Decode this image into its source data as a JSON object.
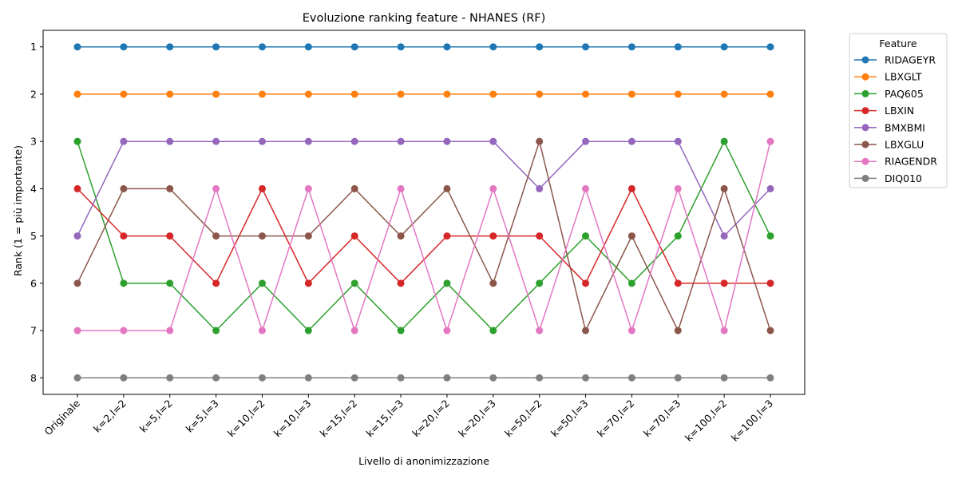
{
  "chart_data": {
    "type": "line",
    "title": "Evoluzione ranking feature - NHANES (RF)",
    "xlabel": "Livello di anonimizzazione",
    "ylabel": "Rank (1 = più importante)",
    "categories": [
      "Originale",
      "k=2,l=2",
      "k=5,l=2",
      "k=5,l=3",
      "k=10,l=2",
      "k=10,l=3",
      "k=15,l=2",
      "k=15,l=3",
      "k=20,l=2",
      "k=20,l=3",
      "k=50,l=2",
      "k=50,l=3",
      "k=70,l=2",
      "k=70,l=3",
      "k=100,l=2",
      "k=100,l=3"
    ],
    "yticks": [
      1,
      2,
      3,
      4,
      5,
      6,
      7,
      8
    ],
    "ylim": [
      8.35,
      0.65
    ],
    "y_inverted": true,
    "grid": false,
    "legend": {
      "title": "Feature",
      "placement": "outside-top-right"
    },
    "series": [
      {
        "name": "RIDAGEYR",
        "color": "#1f77b4",
        "values": [
          1,
          1,
          1,
          1,
          1,
          1,
          1,
          1,
          1,
          1,
          1,
          1,
          1,
          1,
          1,
          1
        ]
      },
      {
        "name": "LBXGLT",
        "color": "#ff7f0e",
        "values": [
          2,
          2,
          2,
          2,
          2,
          2,
          2,
          2,
          2,
          2,
          2,
          2,
          2,
          2,
          2,
          2
        ]
      },
      {
        "name": "PAQ605",
        "color": "#2ca02c",
        "values": [
          3,
          6,
          6,
          7,
          6,
          7,
          6,
          7,
          6,
          7,
          6,
          5,
          6,
          5,
          3,
          5
        ]
      },
      {
        "name": "LBXIN",
        "color": "#d62728",
        "values": [
          4,
          5,
          5,
          6,
          4,
          6,
          5,
          6,
          5,
          5,
          5,
          6,
          4,
          6,
          6,
          6
        ]
      },
      {
        "name": "BMXBMI",
        "color": "#9467bd",
        "values": [
          5,
          3,
          3,
          3,
          3,
          3,
          3,
          3,
          3,
          3,
          4,
          3,
          3,
          3,
          5,
          4
        ]
      },
      {
        "name": "LBXGLU",
        "color": "#8c564b",
        "values": [
          6,
          4,
          4,
          5,
          5,
          5,
          4,
          5,
          4,
          6,
          3,
          7,
          5,
          7,
          4,
          7
        ]
      },
      {
        "name": "RIAGENDR",
        "color": "#e377c2",
        "values": [
          7,
          7,
          7,
          4,
          7,
          4,
          7,
          4,
          7,
          4,
          7,
          4,
          7,
          4,
          7,
          3
        ]
      },
      {
        "name": "DIQ010",
        "color": "#7f7f7f",
        "values": [
          8,
          8,
          8,
          8,
          8,
          8,
          8,
          8,
          8,
          8,
          8,
          8,
          8,
          8,
          8,
          8
        ]
      }
    ]
  }
}
